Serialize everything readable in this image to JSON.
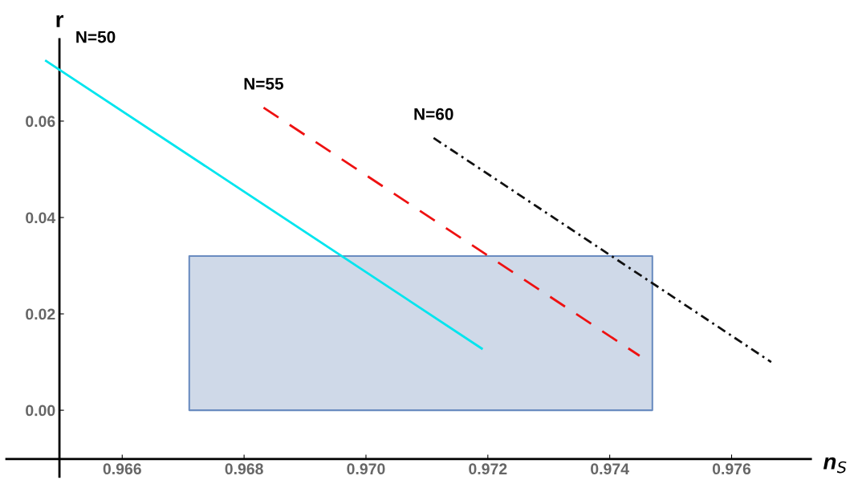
{
  "chart_data": {
    "type": "line",
    "xlabel": "n$_{S}$",
    "ylabel": "r",
    "xlim": [
      0.9641,
      0.9773
    ],
    "ylim": [
      -0.0138,
      0.077
    ],
    "xticks": [
      0.966,
      0.968,
      {
        "value": 0.97,
        "label": "0.970"
      },
      0.972,
      0.974,
      0.976
    ],
    "yticks": [
      {
        "value": 0,
        "label": "0.00"
      },
      0.02,
      0.04,
      0.06
    ],
    "grid": false,
    "legend": false,
    "marker": "none",
    "series": [
      {
        "type": "area",
        "x": [
          0.9671,
          0.9747
        ],
        "values": [
          0.032,
          0.032
        ],
        "color": "#cfd9e8"
      },
      {
        "name": "N=50",
        "x": [
          0.96475,
          0.9719
        ],
        "values": [
          0.0725,
          0.0128
        ],
        "color": "#00e5ee",
        "line_style": "solid"
      },
      {
        "name": "N=55",
        "x": [
          0.96832,
          0.97449
        ],
        "values": [
          0.0628,
          0.0113
        ],
        "color": "#ee1111",
        "line_style": "dashed"
      },
      {
        "name": "N=60",
        "x": [
          0.97111,
          0.97665
        ],
        "values": [
          0.0565,
          0.01
        ],
        "color": "#111111",
        "line_style": "dashdot"
      }
    ]
  }
}
